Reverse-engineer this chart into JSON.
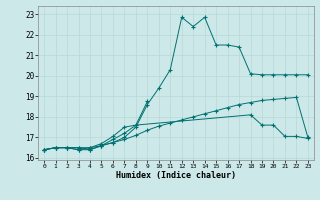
{
  "xlabel": "Humidex (Indice chaleur)",
  "xlim": [
    -0.5,
    23.5
  ],
  "ylim": [
    15.9,
    23.4
  ],
  "yticks": [
    16,
    17,
    18,
    19,
    20,
    21,
    22,
    23
  ],
  "xticks": [
    0,
    1,
    2,
    3,
    4,
    5,
    6,
    7,
    8,
    9,
    10,
    11,
    12,
    13,
    14,
    15,
    16,
    17,
    18,
    19,
    20,
    21,
    22,
    23
  ],
  "bg_color": "#cce8e8",
  "line_color": "#007070",
  "grid_color": "#b8d8d8",
  "series1_x": [
    0,
    1,
    2,
    3,
    4,
    5,
    6,
    7,
    8,
    9,
    10,
    11,
    12,
    13,
    14,
    15,
    16,
    17,
    18,
    19,
    20,
    21,
    22,
    23
  ],
  "series1_y": [
    16.4,
    16.5,
    16.5,
    16.4,
    16.5,
    16.6,
    16.75,
    16.9,
    17.1,
    17.35,
    17.55,
    17.7,
    17.85,
    18.0,
    18.15,
    18.3,
    18.45,
    18.6,
    18.7,
    18.8,
    18.85,
    18.9,
    18.95,
    17.0
  ],
  "series2_x": [
    0,
    1,
    2,
    3,
    4,
    5,
    6,
    7,
    8,
    9,
    10,
    11,
    12,
    13,
    14,
    15,
    16,
    17,
    18,
    19,
    20,
    21,
    22,
    23
  ],
  "series2_y": [
    16.4,
    16.5,
    16.5,
    16.4,
    16.4,
    16.6,
    16.75,
    17.0,
    17.5,
    18.6,
    19.4,
    20.3,
    22.85,
    22.4,
    22.85,
    21.5,
    21.5,
    21.4,
    20.1,
    20.05,
    20.05,
    20.05,
    20.05,
    20.05
  ],
  "series3_x": [
    0,
    1,
    2,
    3,
    4,
    5,
    6,
    7,
    8,
    9
  ],
  "series3_y": [
    16.4,
    16.5,
    16.5,
    16.5,
    16.5,
    16.7,
    17.05,
    17.5,
    17.6,
    18.75
  ],
  "series4_x": [
    0,
    1,
    2,
    3,
    4,
    5,
    6,
    7,
    8,
    18,
    19,
    20,
    21,
    22,
    23
  ],
  "series4_y": [
    16.4,
    16.5,
    16.5,
    16.5,
    16.4,
    16.6,
    16.9,
    17.2,
    17.6,
    18.1,
    17.6,
    17.6,
    17.05,
    17.05,
    16.95
  ]
}
